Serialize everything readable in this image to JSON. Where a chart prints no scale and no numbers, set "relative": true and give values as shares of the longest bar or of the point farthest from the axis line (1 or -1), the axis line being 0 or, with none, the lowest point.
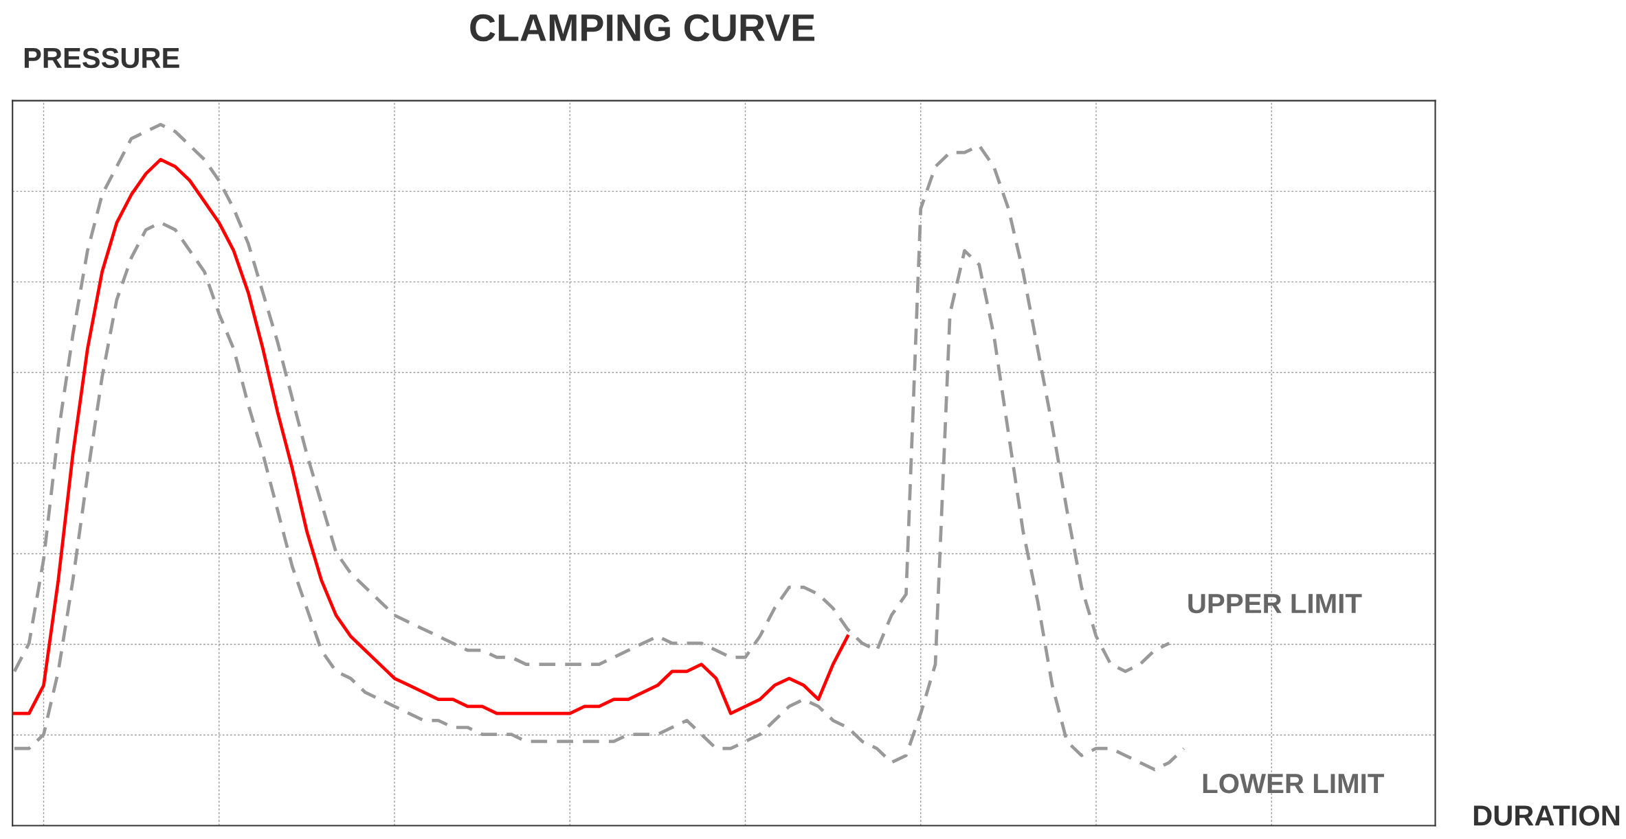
{
  "chart_data": {
    "type": "line",
    "title": "CLAMPING CURVE",
    "annotations": [
      "DURATION"
    ],
    "ylabel": "PRESSURE",
    "relative": true,
    "grid": true,
    "categories": [
      null,
      null,
      null,
      null,
      null,
      null,
      null,
      null,
      null,
      null,
      null,
      null,
      null,
      null,
      null,
      null,
      null,
      null,
      null,
      null,
      null,
      null,
      null,
      null,
      null,
      null,
      null,
      null,
      null,
      null,
      null,
      null,
      null,
      null,
      null,
      null,
      null,
      null,
      null,
      null,
      null,
      null,
      null,
      null,
      null,
      null,
      null,
      null,
      null,
      null,
      null,
      null,
      null,
      null,
      null,
      null,
      null,
      null,
      null,
      null,
      null,
      null,
      null,
      null,
      null,
      null,
      null,
      null,
      null,
      null,
      null,
      null,
      null,
      null,
      null,
      null,
      null,
      null,
      null,
      null,
      null
    ],
    "series": [
      {
        "color": "#ff0000",
        "line_style": "solid",
        "values": [
          0.16,
          0.16,
          0.2,
          0.35,
          0.53,
          0.68,
          0.79,
          0.86,
          0.9,
          0.93,
          0.95,
          0.94,
          0.92,
          0.89,
          0.86,
          0.82,
          0.76,
          0.68,
          0.59,
          0.51,
          0.42,
          0.35,
          0.3,
          0.27,
          0.25,
          0.23,
          0.21,
          0.2,
          0.19,
          0.18,
          0.18,
          0.17,
          0.17,
          0.16,
          0.16,
          0.16,
          0.16,
          0.16,
          0.16,
          0.17,
          0.17,
          0.18,
          0.18,
          0.19,
          0.2,
          0.22,
          0.22,
          0.23,
          0.21,
          0.16,
          0.17,
          0.18,
          0.2,
          0.21,
          0.2,
          0.18,
          0.23,
          0.27,
          null,
          null,
          null,
          null,
          null,
          null,
          null,
          null,
          null,
          null,
          null,
          null,
          null,
          null,
          null,
          null,
          null,
          null,
          null,
          null,
          null,
          null,
          null
        ]
      },
      {
        "name": "UPPER LIMIT",
        "color": "#999999",
        "line_style": "dashed",
        "values": [
          0.22,
          0.26,
          0.38,
          0.56,
          0.7,
          0.82,
          0.9,
          0.94,
          0.98,
          0.99,
          1.0,
          0.99,
          0.97,
          0.95,
          0.92,
          0.88,
          0.83,
          0.76,
          0.69,
          0.61,
          0.53,
          0.46,
          0.39,
          0.36,
          0.34,
          0.32,
          0.3,
          0.29,
          0.28,
          0.27,
          0.26,
          0.25,
          0.25,
          0.24,
          0.24,
          0.23,
          0.23,
          0.23,
          0.23,
          0.23,
          0.23,
          0.24,
          0.25,
          0.26,
          0.27,
          0.26,
          0.26,
          0.26,
          0.25,
          0.24,
          0.24,
          0.27,
          0.31,
          0.34,
          0.34,
          0.33,
          0.31,
          0.28,
          0.26,
          0.25,
          0.3,
          0.33,
          0.88,
          0.94,
          0.96,
          0.96,
          0.97,
          0.94,
          0.88,
          0.79,
          0.68,
          0.57,
          0.45,
          0.34,
          0.27,
          0.23,
          0.22,
          0.23,
          0.25,
          0.26,
          null
        ]
      },
      {
        "name": "LOWER LIMIT",
        "color": "#999999",
        "line_style": "dashed",
        "values": [
          0.11,
          0.11,
          0.13,
          0.22,
          0.35,
          0.5,
          0.64,
          0.75,
          0.81,
          0.85,
          0.86,
          0.85,
          0.82,
          0.79,
          0.73,
          0.68,
          0.6,
          0.53,
          0.45,
          0.37,
          0.31,
          0.25,
          0.22,
          0.21,
          0.19,
          0.18,
          0.17,
          0.16,
          0.15,
          0.15,
          0.14,
          0.14,
          0.13,
          0.13,
          0.13,
          0.12,
          0.12,
          0.12,
          0.12,
          0.12,
          0.12,
          0.12,
          0.13,
          0.13,
          0.13,
          0.14,
          0.15,
          0.13,
          0.11,
          0.11,
          0.12,
          0.13,
          0.15,
          0.17,
          0.18,
          0.17,
          0.15,
          0.14,
          0.12,
          0.11,
          0.09,
          0.1,
          0.16,
          0.23,
          0.73,
          0.82,
          0.8,
          0.7,
          0.56,
          0.42,
          0.32,
          0.2,
          0.12,
          0.1,
          0.11,
          0.11,
          0.1,
          0.09,
          0.08,
          0.09,
          0.11
        ]
      }
    ]
  }
}
